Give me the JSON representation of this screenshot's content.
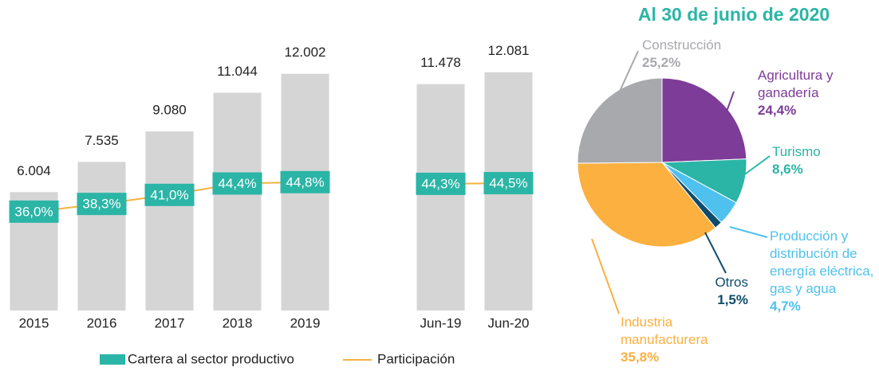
{
  "chart_data": [
    {
      "type": "bar",
      "categories": [
        "2015",
        "2016",
        "2017",
        "2018",
        "2019",
        null,
        "Jun-19",
        "Jun-20"
      ],
      "ylim": [
        0,
        13000
      ],
      "y2lim": [
        6.5,
        83
      ],
      "bar_color": "#d5d5d5",
      "series": [
        {
          "name": "Cartera al sector productivo",
          "color": "#2bb5a6",
          "values": [
            6004,
            7535,
            9080,
            11044,
            12002,
            null,
            11478,
            12081
          ],
          "value_labels": [
            "6.004",
            "7.535",
            "9.080",
            "11.044",
            "12.002",
            null,
            "11.478",
            "12.081"
          ]
        },
        {
          "name": "Participación",
          "color": "#f5b342",
          "axis": "y2",
          "label_color": "#2bb5a6",
          "values": [
            36.0,
            38.3,
            41.0,
            44.4,
            44.8,
            null,
            44.3,
            44.5
          ],
          "value_labels": [
            "36,0%",
            "38,3%",
            "41,0%",
            "44,4%",
            "44,8%",
            null,
            "44,3%",
            "44,5%"
          ]
        }
      ]
    },
    {
      "type": "pie",
      "title": "Al 30 de junio de 2020",
      "title_color": "#2bb5a6",
      "categories": [
        "Agricultura y ganadería",
        "Turismo",
        "Producción y distribución de energía eléctrica, gas y agua",
        "Otros",
        "Industria manufacturera",
        "Construcción"
      ],
      "values": [
        24.4,
        8.6,
        4.7,
        1.5,
        35.8,
        25.2
      ],
      "value_labels": [
        "24,4%",
        "8,6%",
        "4,7%",
        "1,5%",
        "35,8%",
        "25,2%"
      ],
      "colors": [
        "#7d3c98",
        "#2bb5a6",
        "#4fc1ee",
        "#0f4c6b",
        "#fbb03f",
        "#a8a9ad"
      ]
    }
  ]
}
